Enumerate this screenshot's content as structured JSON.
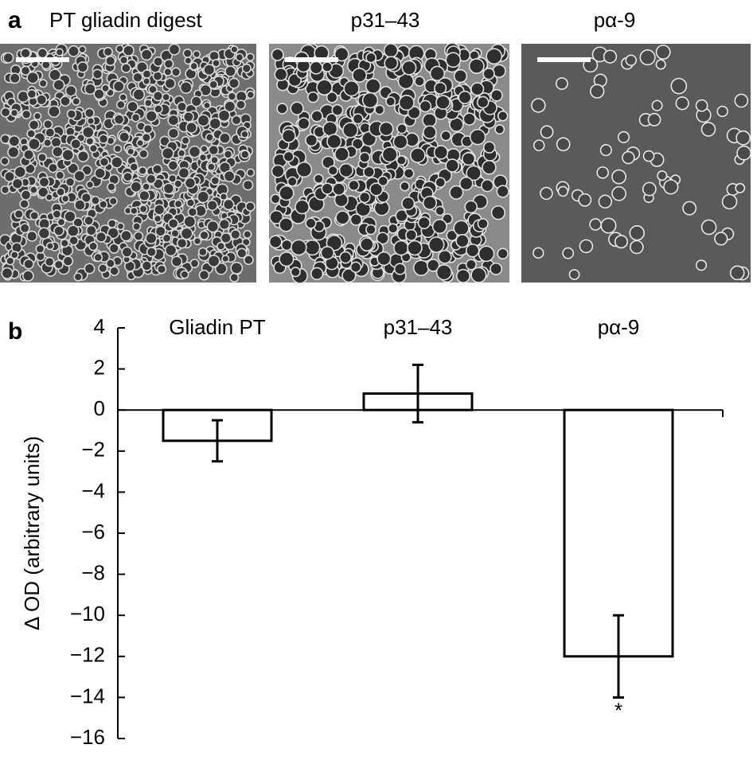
{
  "figure": {
    "panel_a": {
      "label": "a",
      "images": [
        "PT gliadin digest",
        "p31–43",
        "pα-9"
      ]
    },
    "panel_b": {
      "label": "b"
    }
  },
  "chart_data": {
    "type": "bar",
    "y_label": "Δ OD (arbitrary units)",
    "categories": [
      "Gliadin PT",
      "p31–43",
      "pα-9"
    ],
    "values": [
      -1.5,
      0.8,
      -12
    ],
    "errors": [
      1.0,
      1.4,
      2.0
    ],
    "significance": [
      null,
      null,
      "*"
    ],
    "bar_fill": "#ffffff",
    "bar_edge": "#000000",
    "ylim": [
      -16,
      4
    ],
    "yticks": [
      {
        "value": -16,
        "label": "−16"
      },
      {
        "value": -14,
        "label": "−14"
      },
      {
        "value": -12,
        "label": "−12"
      },
      {
        "value": -10,
        "label": "−10"
      },
      {
        "value": -8,
        "label": "−8"
      },
      {
        "value": -6,
        "label": "−6"
      },
      {
        "value": -4,
        "label": "−4"
      },
      {
        "value": -2,
        "label": "−2"
      },
      0,
      2,
      4
    ],
    "grid": false
  }
}
